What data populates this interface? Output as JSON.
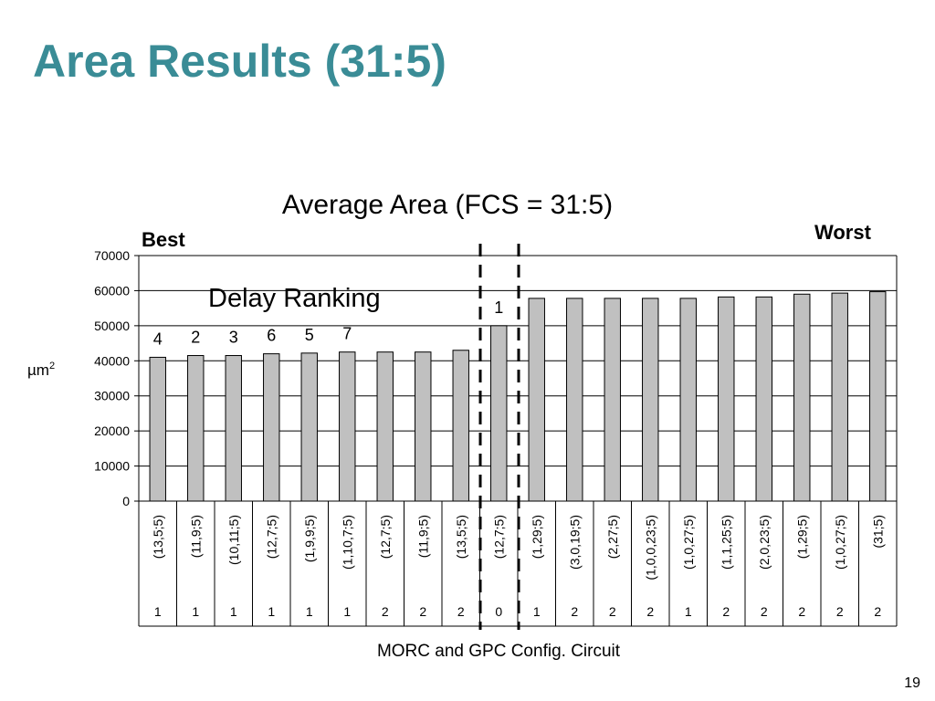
{
  "slide": {
    "title": "Area Results (31:5)",
    "page_number": "19"
  },
  "annotations": {
    "best": "Best",
    "worst": "Worst",
    "delay_ranking": "Delay Ranking"
  },
  "colors": {
    "title": "#3a8c96",
    "bar_fill": "#c0c0c0",
    "bar_stroke": "#000000"
  },
  "chart_data": {
    "type": "bar",
    "title": "Average Area (FCS = 31:5)",
    "xlabel": "MORC and GPC Config. Circuit",
    "ylabel": "µm",
    "ylabel_superscript": "2",
    "ylim": [
      0,
      70000
    ],
    "yticks": [
      0,
      10000,
      20000,
      30000,
      40000,
      50000,
      60000,
      70000
    ],
    "grid": true,
    "categories": [
      "(13,5;5)",
      "(11,9;5)",
      "(10,11;5)",
      "(12,7;5)",
      "(1,9,9;5)",
      "(1,10,7;5)",
      "(12,7;5)",
      "(11,9;5)",
      "(13,5;5)",
      "(12,7;5)",
      "(1,29;5)",
      "(3,0,19;5)",
      "(2,27;5)",
      "(1,0,0,23;5)",
      "(1,0,27;5)",
      "(1,1,25;5)",
      "(2,0,23;5)",
      "(1,29;5)",
      "(1,0,27;5)",
      "(31;5)"
    ],
    "category_codes": [
      "1",
      "1",
      "1",
      "1",
      "1",
      "1",
      "2",
      "2",
      "2",
      "0",
      "1",
      "2",
      "2",
      "2",
      "1",
      "2",
      "2",
      "2",
      "2",
      "2"
    ],
    "values": [
      41000,
      41500,
      41500,
      42000,
      42200,
      42500,
      42500,
      42500,
      43000,
      50000,
      57800,
      57800,
      57800,
      57800,
      57800,
      58200,
      58200,
      59000,
      59300,
      59700
    ],
    "delay_rank_labels": [
      "4",
      "2",
      "3",
      "6",
      "5",
      "7",
      "",
      "",
      "",
      "1",
      "",
      "",
      "",
      "",
      "",
      "",
      "",
      "",
      "",
      ""
    ]
  }
}
